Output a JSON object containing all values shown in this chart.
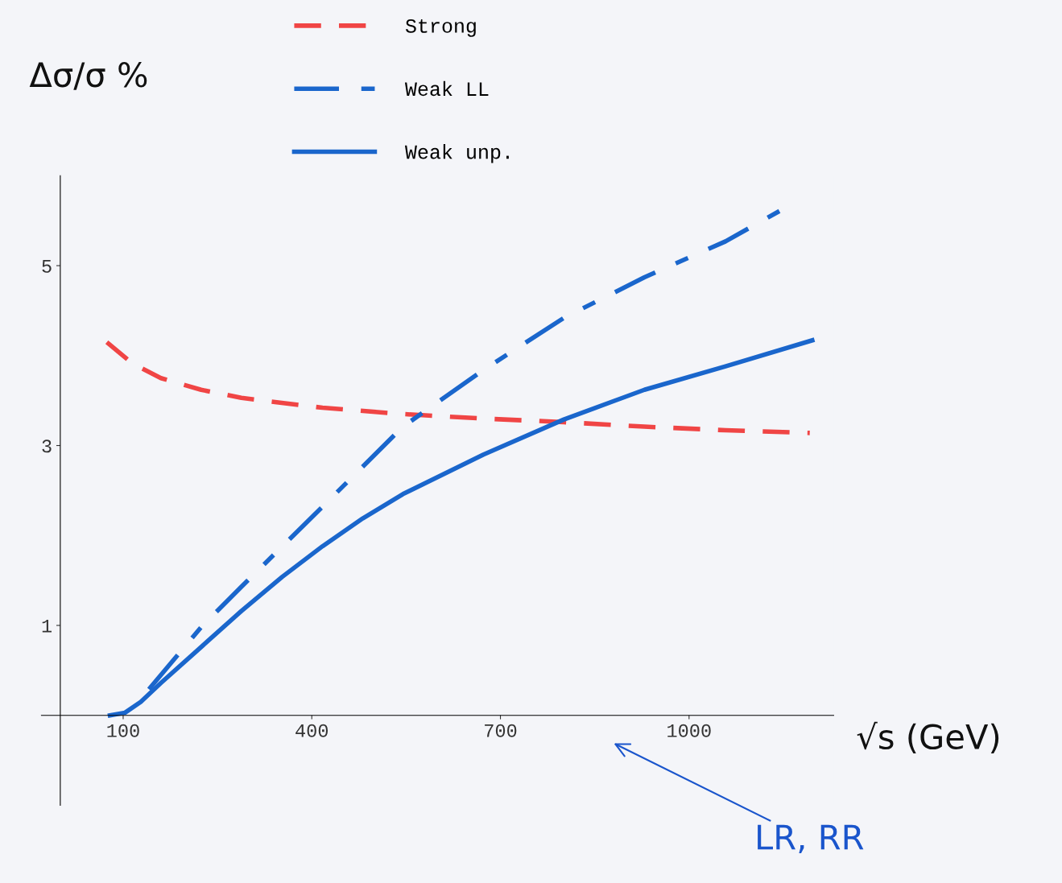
{
  "chart_data": {
    "type": "line",
    "xlabel": "√s (GeV)",
    "ylabel": "Δσ/σ %",
    "xlim": [
      -30,
      1230
    ],
    "ylim": [
      -1,
      6
    ],
    "xticks": [
      100,
      400,
      700,
      1000
    ],
    "yticks": [
      1,
      3,
      5
    ],
    "grid": false,
    "legend": "top",
    "marker": "none",
    "annotations": [
      "LR, RR"
    ],
    "series": [
      {
        "name": "Strong",
        "color": "#f04545",
        "line_style": "dashed",
        "x": [
          74,
          115,
          160,
          224,
          288,
          417,
          545,
          673,
          801,
          929,
          1058,
          1192
        ],
        "values": [
          4.15,
          3.91,
          3.75,
          3.62,
          3.53,
          3.42,
          3.35,
          3.3,
          3.26,
          3.21,
          3.17,
          3.14
        ]
      },
      {
        "name": "Weak LL",
        "color": "#1a66cc",
        "line_style": "dashdot",
        "x": [
          141,
          224,
          288,
          417,
          545,
          673,
          801,
          929,
          1058,
          1147
        ],
        "values": [
          0.29,
          0.98,
          1.43,
          2.32,
          3.21,
          3.84,
          4.42,
          4.87,
          5.27,
          5.62
        ]
      },
      {
        "name": "Weak unp.",
        "color": "#1a66cc",
        "line_style": "solid",
        "x": [
          79,
          103,
          128,
          160,
          224,
          288,
          353,
          417,
          481,
          545,
          673,
          801,
          929,
          1058,
          1196
        ],
        "values": [
          0,
          0.03,
          0.15,
          0.36,
          0.76,
          1.16,
          1.54,
          1.88,
          2.19,
          2.46,
          2.9,
          3.29,
          3.62,
          3.88,
          4.17
        ]
      }
    ]
  }
}
